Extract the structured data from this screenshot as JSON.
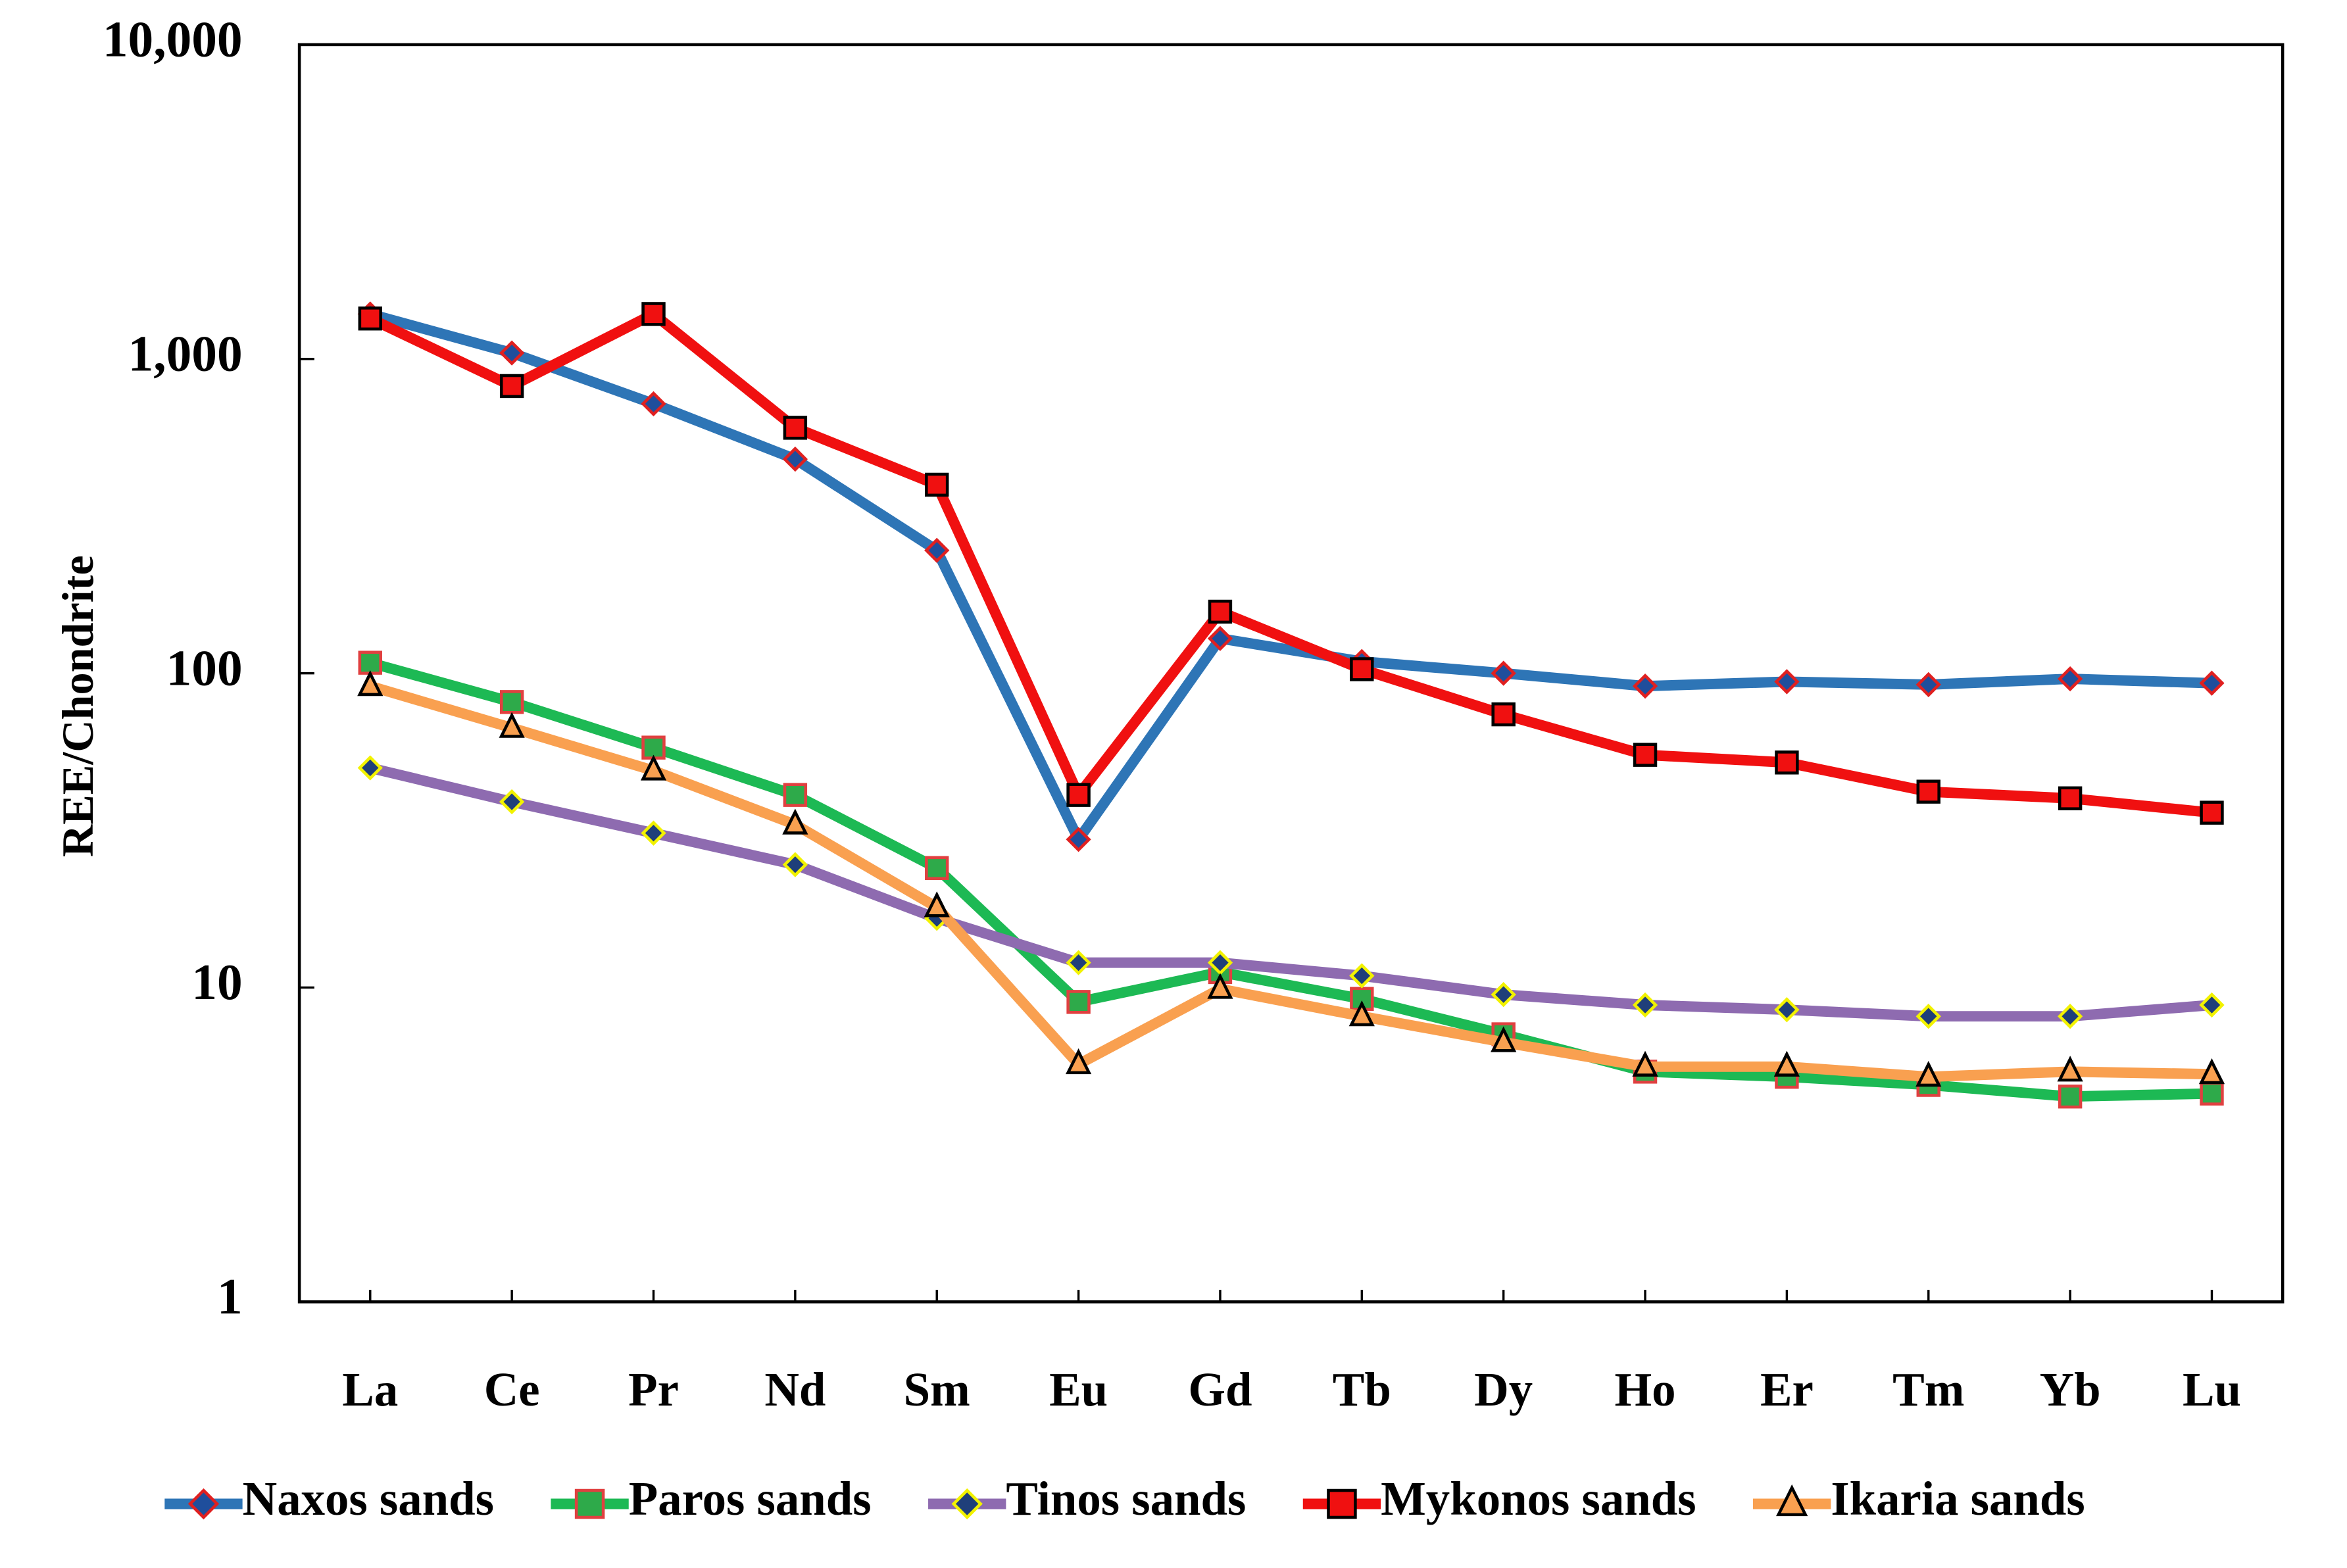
{
  "chart_data": {
    "type": "line",
    "y_label": "REE/Chondrite",
    "categories": [
      "La",
      "Ce",
      "Pr",
      "Nd",
      "Sm",
      "Eu",
      "Gd",
      "Tb",
      "Dy",
      "Ho",
      "Er",
      "Tm",
      "Yb",
      "Lu"
    ],
    "log_scale": true,
    "ylim": [
      1,
      10000
    ],
    "yticks": [
      1,
      10,
      100,
      {
        "value": 1000,
        "label": "1,000"
      },
      {
        "value": 10000,
        "label": "10,000"
      }
    ],
    "grid": false,
    "legend": "bottom",
    "series": [
      {
        "name": "Naxos sands",
        "color": "#2e75b6",
        "marker": "diamond",
        "marker_fill": "#1f4e9c",
        "marker_edge": "#e02020",
        "values": [
          1390,
          1045,
          720,
          480,
          246,
          29.6,
          129,
          109,
          100,
          91,
          94,
          92,
          96,
          93
        ]
      },
      {
        "name": "Paros sands",
        "color": "#1db954",
        "marker": "square",
        "marker_fill": "#2eaa4a",
        "marker_edge": "#e04040",
        "values": [
          108,
          81,
          58,
          41,
          24,
          9,
          11.2,
          9.2,
          7.1,
          5.4,
          5.2,
          4.9,
          4.5,
          4.6
        ]
      },
      {
        "name": "Tinos sands",
        "color": "#8e6bb0",
        "marker": "diamond",
        "marker_fill": "#1f3f7a",
        "marker_edge": "#f2f200",
        "values": [
          50,
          39,
          31,
          24.6,
          16.6,
          12,
          12,
          10.9,
          9.5,
          8.8,
          8.5,
          8.1,
          8.1,
          8.8
        ]
      },
      {
        "name": "Mykonos sands",
        "color": "#f01010",
        "marker": "square",
        "marker_fill": "#f01010",
        "marker_edge": "#000000",
        "values": [
          1345,
          820,
          1390,
          604,
          398,
          41,
          157,
          103,
          74,
          55,
          52,
          42,
          40,
          36
        ]
      },
      {
        "name": "Ikaria sands",
        "color": "#f9a050",
        "marker": "triangle",
        "marker_fill": "#f9a050",
        "marker_edge": "#000000",
        "values": [
          91,
          67,
          49,
          33,
          18,
          5.7,
          9.9,
          8.1,
          6.7,
          5.6,
          5.6,
          5.2,
          5.4,
          5.3
        ]
      }
    ]
  }
}
